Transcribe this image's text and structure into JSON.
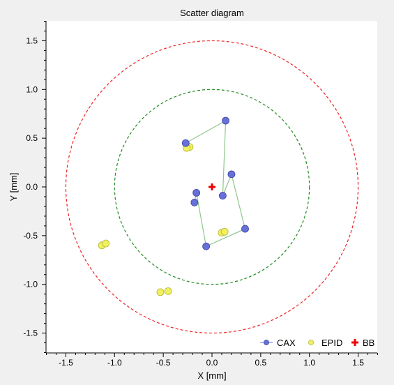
{
  "chart_data": {
    "type": "scatter",
    "title": "Scatter diagram",
    "xlabel": "X [mm]",
    "ylabel": "Y [mm]",
    "xlim": [
      -1.7,
      1.7
    ],
    "ylim": [
      -1.7,
      1.7
    ],
    "xticks": [
      "-1.5",
      "-1.0",
      "-0.5",
      "0.0",
      "0.5",
      "1.0",
      "1.5"
    ],
    "yticks": [
      "1.5",
      "1.0",
      "0.5",
      "0.0",
      "-0.5",
      "-1.0",
      "-1.5"
    ],
    "grid": false,
    "legend_position": "bottom-right",
    "circles": [
      {
        "radius": 1.0,
        "color": "#228b22"
      },
      {
        "radius": 1.5,
        "color": "#ee2222"
      }
    ],
    "series": [
      {
        "name": "CAX",
        "marker": "circle",
        "color": "#6670d8",
        "line_color": "#8cc78c",
        "connected": true,
        "points": [
          [
            -0.27,
            0.45
          ],
          [
            0.14,
            0.68
          ],
          [
            0.11,
            -0.09
          ],
          [
            0.2,
            0.13
          ],
          [
            0.34,
            -0.43
          ],
          [
            -0.06,
            -0.61
          ],
          [
            -0.16,
            -0.06
          ],
          [
            -0.18,
            -0.16
          ]
        ]
      },
      {
        "name": "EPID",
        "marker": "circle",
        "color": "#f0f060",
        "connected": false,
        "points": [
          [
            -0.23,
            0.41
          ],
          [
            -0.26,
            0.4
          ],
          [
            0.1,
            -0.47
          ],
          [
            0.13,
            -0.46
          ],
          [
            -1.13,
            -0.6
          ],
          [
            -1.09,
            -0.58
          ],
          [
            -0.53,
            -1.08
          ],
          [
            -0.45,
            -1.07
          ]
        ]
      },
      {
        "name": "BB",
        "marker": "cross",
        "color": "#ee0000",
        "connected": false,
        "points": [
          [
            0.0,
            0.0
          ]
        ]
      }
    ]
  }
}
